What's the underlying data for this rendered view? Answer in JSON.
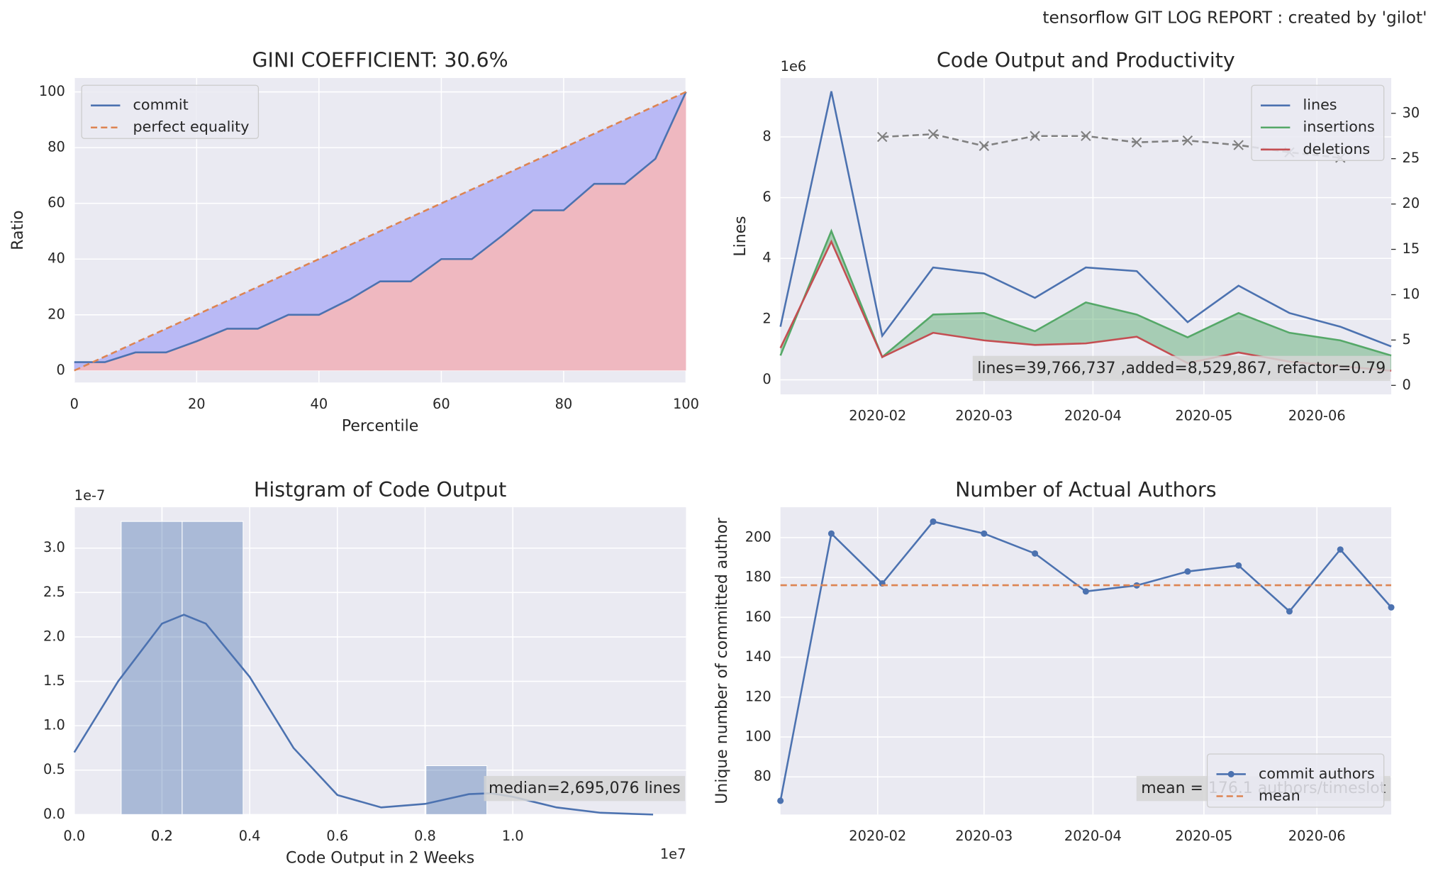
{
  "suptitle": "tensorflow GIT LOG REPORT : created by 'gilot'",
  "chart_data": [
    {
      "type": "area",
      "title": "GINI COEFFICIENT: 30.6%",
      "xlabel": "Percentile",
      "ylabel": "Ratio",
      "x": [
        0,
        5,
        10,
        15,
        20,
        25,
        30,
        35,
        40,
        45,
        50,
        55,
        60,
        65,
        70,
        75,
        80,
        85,
        90,
        95,
        100
      ],
      "series": [
        {
          "name": "commit",
          "color": "#4c72b0",
          "fill": "#efb8c0",
          "values": [
            3,
            3,
            6.5,
            6.5,
            10.5,
            15,
            15,
            20,
            20,
            25.5,
            32,
            32,
            40,
            40,
            48.5,
            57.5,
            57.5,
            67,
            67,
            76,
            100
          ]
        },
        {
          "name": "perfect equality",
          "color": "#dd8452",
          "dashed": true,
          "fill": "#b9b9f5",
          "values": [
            0,
            5,
            10,
            15,
            20,
            25,
            30,
            35,
            40,
            45,
            50,
            55,
            60,
            65,
            70,
            75,
            80,
            85,
            90,
            95,
            100
          ]
        }
      ],
      "xlim": [
        0,
        100
      ],
      "xticks": [
        0,
        20,
        40,
        60,
        80,
        100
      ],
      "ylim": [
        -4.3,
        105
      ],
      "yticks": [
        0,
        20,
        40,
        60,
        80,
        100
      ],
      "grid": true,
      "legend": "upper left"
    },
    {
      "type": "line",
      "title": "Code Output and Productivity",
      "ylabel": "Lines",
      "y_offset_label": "1e6",
      "categories": [
        null,
        null,
        null,
        null,
        null,
        null,
        null,
        null,
        null,
        null,
        null,
        null,
        null
      ],
      "xlim": [
        0,
        12
      ],
      "xticks": [
        {
          "value": 1.91,
          "label": "2020-02"
        },
        {
          "value": 4.0,
          "label": "2020-03"
        },
        {
          "value": 6.14,
          "label": "2020-04"
        },
        {
          "value": 8.32,
          "label": "2020-05"
        },
        {
          "value": 10.54,
          "label": "2020-06"
        }
      ],
      "ylim": [
        -0.48,
        9.94
      ],
      "yticks": [
        0,
        2,
        4,
        6,
        8
      ],
      "y2lim": [
        -1,
        33.9
      ],
      "y2ticks": [
        0,
        5,
        10,
        15,
        20,
        25,
        30
      ],
      "series": [
        {
          "name": "lines",
          "color": "#4c72b0",
          "values": [
            1.75,
            9.5,
            1.45,
            3.7,
            3.5,
            2.7,
            3.7,
            3.58,
            1.9,
            3.1,
            2.2,
            1.75,
            1.1
          ]
        },
        {
          "name": "insertions",
          "color": "#55a868",
          "values": [
            0.8,
            4.9,
            0.75,
            2.15,
            2.2,
            1.6,
            2.55,
            2.15,
            1.4,
            2.2,
            1.55,
            1.3,
            0.8
          ]
        },
        {
          "name": "deletions",
          "color": "#c44e52",
          "values": [
            1.05,
            4.55,
            0.75,
            1.55,
            1.3,
            1.15,
            1.2,
            1.42,
            0.55,
            0.9,
            0.6,
            0.45,
            0.3
          ]
        },
        {
          "color": "#808080",
          "dashed": true,
          "marker": "x",
          "axis": "y2",
          "values": [
            null,
            null,
            27.4,
            27.7,
            26.4,
            27.5,
            27.5,
            26.8,
            27.0,
            26.5,
            25.7,
            25.1,
            null
          ]
        }
      ],
      "fill_between": [
        "insertions",
        "deletions"
      ],
      "fill_color": "#55a868",
      "grid": true,
      "legend": "upper right",
      "annotation": "lines=39,766,737 ,added=8,529,867, refactor=0.79"
    },
    {
      "type": "histogram",
      "title": "Histgram of Code Output",
      "xlabel": "Code Output in 2 Weeks",
      "x_offset_label": "1e7",
      "y_offset_label": "1e-7",
      "bins": [
        0.107,
        0.246,
        0.385,
        0.524,
        0.663,
        0.802,
        0.941
      ],
      "counts": [
        3.3,
        3.3,
        0,
        0,
        0,
        0.55
      ],
      "color": "#4c72b0",
      "kde": {
        "color": "#4c72b0",
        "x": [
          0,
          0.1,
          0.2,
          0.25,
          0.3,
          0.4,
          0.5,
          0.6,
          0.7,
          0.8,
          0.9,
          0.95,
          1.0,
          1.1,
          1.2,
          1.32
        ],
        "values": [
          0.7,
          1.5,
          2.15,
          2.25,
          2.15,
          1.55,
          0.75,
          0.22,
          0.08,
          0.12,
          0.23,
          0.24,
          0.2,
          0.08,
          0.02,
          0.0
        ]
      },
      "xlim": [
        0,
        1.395
      ],
      "xticks": [
        {
          "value": 0,
          "label": "0.0"
        },
        0.2,
        0.4,
        0.6,
        0.8,
        {
          "value": 1,
          "label": "1.0"
        },
        0.2
      ],
      "ylim": [
        0,
        3.46
      ],
      "yticks": [
        {
          "value": 0,
          "label": "0.0"
        },
        0.5,
        {
          "value": 1,
          "label": "1.0"
        },
        1.5,
        {
          "value": 2,
          "label": "2.0"
        },
        2.5,
        {
          "value": 3,
          "label": "3.0"
        }
      ],
      "grid": true,
      "annotation": "median=2,695,076 lines"
    },
    {
      "type": "line",
      "title": "Number of Actual Authors",
      "ylabel": "Unique number of committed author",
      "categories": [
        null,
        null,
        null,
        null,
        null,
        null,
        null,
        null,
        null,
        null,
        null,
        null,
        null
      ],
      "xlim": [
        0,
        12
      ],
      "xticks": [
        {
          "value": 1.91,
          "label": "2020-02"
        },
        {
          "value": 4.0,
          "label": "2020-03"
        },
        {
          "value": 6.14,
          "label": "2020-04"
        },
        {
          "value": 8.32,
          "label": "2020-05"
        },
        {
          "value": 10.54,
          "label": "2020-06"
        }
      ],
      "ylim": [
        61.1,
        215.2
      ],
      "yticks": [
        80,
        100,
        120,
        140,
        160,
        180,
        200
      ],
      "series": [
        {
          "name": "commit authors",
          "color": "#4c72b0",
          "marker": "dot",
          "values": [
            68,
            202,
            177,
            208,
            202,
            192,
            173,
            176,
            183,
            186,
            163,
            194,
            165
          ]
        },
        {
          "name": "mean",
          "color": "#dd8452",
          "dashed": true,
          "value": 176.1
        }
      ],
      "grid": true,
      "legend": "lower right",
      "annotation": "mean = 176.1 authors/timeslot"
    }
  ]
}
